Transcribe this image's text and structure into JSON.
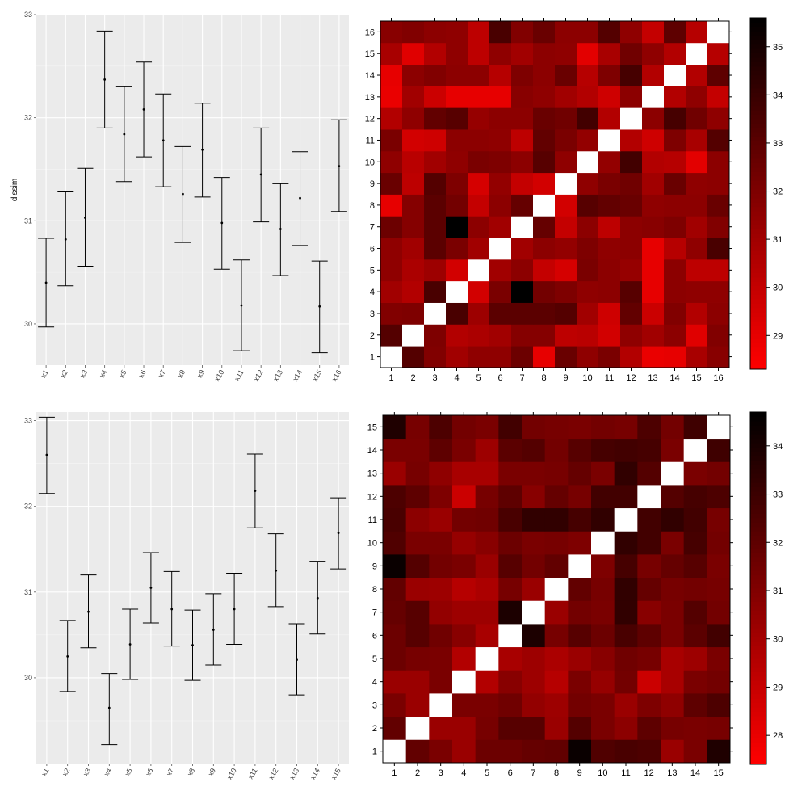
{
  "colors": {
    "panel_bg": "#ebebeb",
    "grid": "#ffffff",
    "errorbar": "#000000",
    "heat_low": "#ff0000",
    "heat_high": "#000000",
    "diagonal": "#ffffff"
  },
  "chart_data": [
    {
      "type": "errorbar",
      "ylabel": "dissim",
      "ylim": [
        29.6,
        33.0
      ],
      "yticks": [
        30,
        31,
        32,
        33
      ],
      "categories": [
        "x1",
        "x2",
        "x3",
        "x4",
        "x5",
        "x6",
        "x7",
        "x8",
        "x9",
        "x10",
        "x11",
        "x12",
        "x13",
        "x14",
        "x15",
        "x16"
      ],
      "mean": [
        30.4,
        30.82,
        31.03,
        32.37,
        31.84,
        32.08,
        31.78,
        31.26,
        31.69,
        30.98,
        30.18,
        31.45,
        30.92,
        31.22,
        30.17,
        31.53
      ],
      "lower": [
        29.97,
        30.37,
        30.56,
        31.9,
        31.38,
        31.62,
        31.33,
        30.79,
        31.23,
        30.53,
        29.74,
        30.99,
        30.47,
        30.76,
        29.72,
        31.09
      ],
      "upper": [
        30.83,
        31.28,
        31.51,
        32.84,
        32.3,
        32.54,
        32.23,
        31.72,
        32.14,
        31.42,
        30.62,
        31.9,
        31.36,
        31.67,
        30.61,
        31.98
      ],
      "grid": true
    },
    {
      "type": "heatmap",
      "n": 16,
      "xticks": [
        "1",
        "2",
        "3",
        "4",
        "5",
        "6",
        "7",
        "8",
        "9",
        "10",
        "11",
        "12",
        "13",
        "14",
        "15",
        "16"
      ],
      "yticks": [
        "1",
        "2",
        "3",
        "4",
        "5",
        "6",
        "7",
        "8",
        "9",
        "10",
        "11",
        "12",
        "13",
        "14",
        "15",
        "16"
      ],
      "colorbar_range": [
        28.3,
        35.6
      ],
      "colorbar_ticks": [
        29,
        30,
        31,
        32,
        33,
        34,
        35
      ],
      "matrix": [
        [
          null,
          33.2,
          31.9,
          31.0,
          31.5,
          31.5,
          32.5,
          29.0,
          32.6,
          31.5,
          32.1,
          30.5,
          28.9,
          29.0,
          30.8,
          31.7
        ],
        [
          33.2,
          null,
          32.0,
          30.5,
          30.7,
          31.0,
          31.8,
          31.8,
          30.2,
          30.3,
          29.6,
          31.5,
          31.0,
          31.6,
          29.2,
          31.9
        ],
        [
          31.9,
          32.0,
          null,
          33.5,
          31.1,
          33.0,
          33.0,
          33.0,
          33.2,
          31.0,
          29.7,
          32.8,
          29.8,
          31.9,
          30.5,
          31.6
        ],
        [
          31.0,
          30.5,
          33.5,
          null,
          29.6,
          32.1,
          35.6,
          32.3,
          32.0,
          31.5,
          31.6,
          33.1,
          29.0,
          31.6,
          31.5,
          31.5
        ],
        [
          31.5,
          30.7,
          31.1,
          29.6,
          null,
          31.0,
          31.6,
          30.0,
          29.5,
          32.1,
          31.6,
          31.3,
          29.0,
          31.6,
          30.2,
          30.2
        ],
        [
          31.5,
          31.0,
          33.0,
          32.1,
          31.0,
          null,
          31.0,
          31.6,
          31.4,
          32.0,
          31.5,
          31.6,
          29.0,
          30.4,
          31.5,
          33.5
        ],
        [
          32.5,
          31.8,
          33.0,
          35.6,
          31.6,
          31.0,
          null,
          32.7,
          30.0,
          31.6,
          30.2,
          31.6,
          31.7,
          32.0,
          31.0,
          31.9
        ],
        [
          29.0,
          31.8,
          33.0,
          32.3,
          30.0,
          31.6,
          32.7,
          null,
          29.6,
          33.1,
          32.8,
          32.6,
          31.5,
          31.6,
          31.6,
          32.6
        ],
        [
          32.6,
          30.2,
          33.2,
          32.0,
          29.5,
          31.4,
          30.0,
          29.6,
          null,
          31.5,
          32.1,
          32.4,
          31.0,
          32.6,
          31.5,
          31.6
        ],
        [
          31.5,
          30.3,
          31.0,
          31.5,
          32.1,
          32.0,
          31.6,
          33.1,
          31.5,
          null,
          31.4,
          33.7,
          30.5,
          30.4,
          29.1,
          31.6
        ],
        [
          32.1,
          29.6,
          29.7,
          31.6,
          31.6,
          31.5,
          30.2,
          32.8,
          32.1,
          31.4,
          null,
          30.5,
          29.7,
          32.0,
          30.8,
          33.2
        ],
        [
          30.5,
          31.5,
          32.8,
          33.1,
          31.3,
          31.6,
          31.6,
          32.6,
          32.4,
          33.7,
          30.5,
          null,
          31.6,
          33.6,
          32.4,
          31.5
        ],
        [
          28.9,
          31.0,
          29.8,
          29.0,
          29.0,
          29.0,
          31.7,
          31.5,
          31.0,
          30.5,
          29.7,
          31.6,
          null,
          30.5,
          31.5,
          30.0
        ],
        [
          29.0,
          31.6,
          31.9,
          31.6,
          31.6,
          30.4,
          32.0,
          31.6,
          32.6,
          30.4,
          32.0,
          33.6,
          30.5,
          null,
          30.5,
          32.9
        ],
        [
          30.8,
          29.2,
          30.5,
          31.5,
          30.2,
          31.5,
          31.0,
          31.6,
          31.5,
          29.1,
          30.8,
          32.4,
          31.5,
          30.5,
          null,
          30.4
        ],
        [
          31.7,
          31.9,
          31.6,
          31.5,
          30.2,
          33.5,
          31.9,
          32.6,
          31.6,
          31.6,
          33.2,
          31.5,
          30.0,
          32.9,
          30.4,
          null
        ]
      ]
    },
    {
      "type": "errorbar",
      "ylabel": "",
      "ylim": [
        29.0,
        33.1
      ],
      "yticks": [
        30,
        31,
        32,
        33
      ],
      "categories": [
        "x1",
        "x2",
        "x3",
        "x4",
        "x5",
        "x6",
        "x7",
        "x8",
        "x9",
        "x10",
        "x11",
        "x12",
        "x13",
        "x14",
        "x15"
      ],
      "mean": [
        32.6,
        30.25,
        30.77,
        29.65,
        30.39,
        31.05,
        30.8,
        30.38,
        30.56,
        30.8,
        32.18,
        31.25,
        30.21,
        30.93,
        31.69
      ],
      "lower": [
        32.15,
        29.84,
        30.35,
        29.22,
        29.98,
        30.64,
        30.37,
        29.97,
        30.15,
        30.39,
        31.75,
        30.83,
        29.8,
        30.51,
        31.27
      ],
      "upper": [
        33.04,
        30.67,
        31.2,
        30.05,
        30.8,
        31.46,
        31.24,
        30.79,
        30.98,
        31.22,
        32.61,
        31.68,
        30.63,
        31.36,
        32.1
      ],
      "grid": true
    },
    {
      "type": "heatmap",
      "n": 15,
      "xticks": [
        "1",
        "2",
        "3",
        "4",
        "5",
        "6",
        "7",
        "8",
        "9",
        "10",
        "11",
        "12",
        "13",
        "14",
        "15"
      ],
      "yticks": [
        "1",
        "2",
        "3",
        "4",
        "5",
        "6",
        "7",
        "8",
        "9",
        "10",
        "11",
        "12",
        "13",
        "14",
        "15"
      ],
      "colorbar_range": [
        27.4,
        34.7
      ],
      "colorbar_ticks": [
        28,
        29,
        30,
        31,
        32,
        33,
        34
      ],
      "matrix": [
        [
          null,
          31.9,
          31.2,
          30.3,
          31.6,
          31.6,
          31.8,
          31.9,
          34.4,
          32.4,
          32.6,
          32.5,
          30.3,
          31.2,
          33.8
        ],
        [
          31.9,
          null,
          30.3,
          30.3,
          31.3,
          32.2,
          32.2,
          30.3,
          32.3,
          31.2,
          30.7,
          32.0,
          31.3,
          31.2,
          31.3
        ],
        [
          31.2,
          30.3,
          null,
          31.2,
          31.2,
          31.5,
          30.5,
          30.2,
          31.4,
          31.2,
          30.3,
          31.1,
          30.6,
          32.0,
          32.5
        ],
        [
          30.3,
          30.3,
          31.2,
          null,
          29.6,
          30.8,
          30.2,
          29.5,
          31.2,
          30.4,
          31.4,
          28.9,
          29.9,
          31.2,
          31.4
        ],
        [
          31.6,
          31.3,
          31.2,
          29.6,
          null,
          29.9,
          30.2,
          29.8,
          30.3,
          30.8,
          31.5,
          31.3,
          29.9,
          30.2,
          31.2
        ],
        [
          31.6,
          32.2,
          31.5,
          30.8,
          29.9,
          null,
          33.9,
          31.3,
          32.2,
          31.6,
          32.6,
          32.0,
          31.2,
          32.1,
          32.8
        ],
        [
          31.8,
          32.2,
          30.5,
          30.2,
          30.2,
          33.9,
          null,
          30.3,
          31.4,
          31.2,
          33.3,
          30.8,
          31.2,
          32.3,
          31.4
        ],
        [
          31.9,
          30.3,
          30.2,
          29.5,
          29.8,
          31.3,
          30.3,
          null,
          31.9,
          31.3,
          33.3,
          31.8,
          31.3,
          31.4,
          31.3
        ],
        [
          34.4,
          32.3,
          31.4,
          31.2,
          30.3,
          32.2,
          31.4,
          31.9,
          null,
          31.1,
          32.7,
          31.3,
          31.8,
          32.2,
          31.2
        ],
        [
          32.4,
          31.2,
          31.2,
          30.4,
          30.8,
          31.6,
          31.2,
          31.3,
          31.1,
          null,
          33.3,
          32.8,
          31.2,
          32.7,
          31.4
        ],
        [
          32.6,
          30.7,
          30.3,
          31.4,
          31.5,
          32.6,
          33.3,
          33.3,
          32.7,
          33.3,
          null,
          32.8,
          33.3,
          32.8,
          31.3
        ],
        [
          32.5,
          32.0,
          31.1,
          28.9,
          31.3,
          32.0,
          30.8,
          31.8,
          31.3,
          32.8,
          32.8,
          null,
          32.3,
          32.7,
          32.5
        ],
        [
          30.3,
          31.3,
          30.6,
          29.9,
          29.9,
          31.2,
          31.2,
          31.3,
          31.8,
          31.2,
          33.3,
          32.3,
          null,
          31.2,
          31.4
        ],
        [
          31.2,
          31.2,
          32.0,
          31.2,
          30.2,
          32.1,
          32.3,
          31.4,
          32.2,
          32.7,
          32.8,
          32.7,
          31.2,
          null,
          32.9
        ],
        [
          33.8,
          31.3,
          32.5,
          31.4,
          31.2,
          32.8,
          31.4,
          31.3,
          31.2,
          31.4,
          31.3,
          32.5,
          31.4,
          32.9,
          null
        ]
      ]
    }
  ]
}
